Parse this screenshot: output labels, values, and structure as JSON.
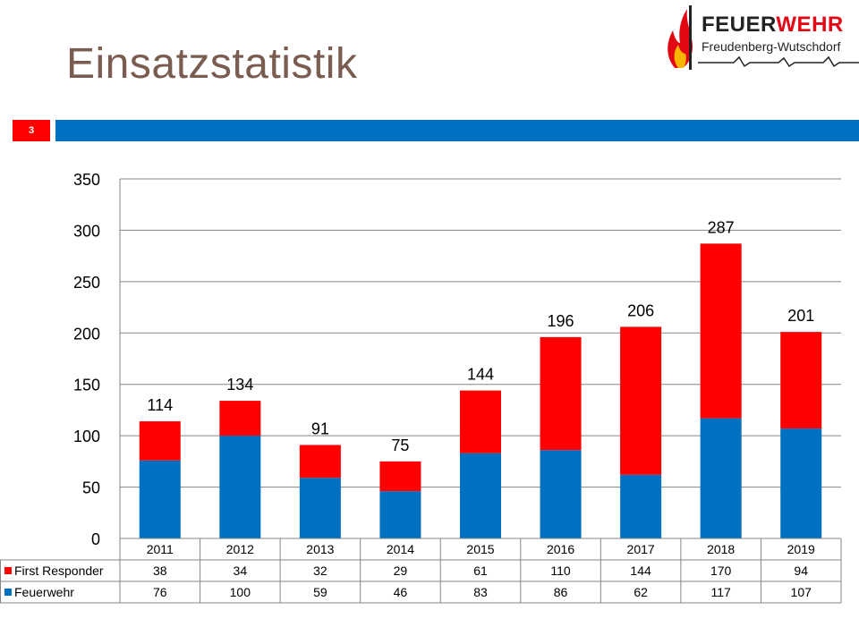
{
  "slide": {
    "title": "Einsatzstatistik",
    "number": "3"
  },
  "logo": {
    "line1_a": "FEUER",
    "line1_b": "WEHR",
    "line2": "Freudenberg-Wutschdorf"
  },
  "colors": {
    "accent_blue": "#0070c0",
    "accent_red": "#ff0000",
    "title_color": "#7a5c50"
  },
  "chart_data": {
    "type": "bar",
    "stacked": true,
    "categories": [
      "2011",
      "2012",
      "2013",
      "2014",
      "2015",
      "2016",
      "2017",
      "2018",
      "2019"
    ],
    "series": [
      {
        "name": "First Responder",
        "color": "#ff0000",
        "values": [
          38,
          34,
          32,
          29,
          61,
          110,
          144,
          170,
          94
        ]
      },
      {
        "name": "Feuerwehr",
        "color": "#0070c0",
        "values": [
          76,
          100,
          59,
          46,
          83,
          86,
          62,
          117,
          107
        ]
      }
    ],
    "totals": [
      114,
      134,
      91,
      75,
      144,
      196,
      206,
      287,
      201
    ],
    "yticks": [
      "0",
      "50",
      "100",
      "150",
      "200",
      "250",
      "300",
      "350"
    ],
    "ylim": [
      0,
      350
    ],
    "grid": true,
    "legend": "data-table"
  }
}
